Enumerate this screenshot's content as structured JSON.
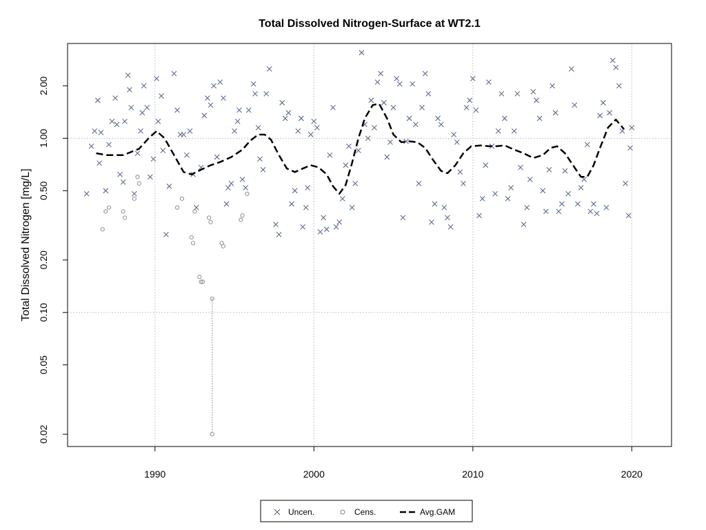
{
  "chart_data": {
    "type": "scatter",
    "title": "Total Dissolved Nitrogen-Surface at WT2.1",
    "xlabel": "",
    "ylabel": "Total Dissolved Nitrogen [mg/L]",
    "xlim": [
      1984.5,
      2022.5
    ],
    "ylim": [
      0.017,
      3.5
    ],
    "y_scale": "log",
    "x_ticks": [
      1990,
      2000,
      2010,
      2020
    ],
    "x_tick_labels": [
      "1990",
      "2000",
      "2010",
      "2020"
    ],
    "y_ticks": [
      0.02,
      0.05,
      0.1,
      0.2,
      0.5,
      1.0,
      2.0
    ],
    "y_tick_labels": [
      "0.02",
      "0.05",
      "0.10",
      "0.20",
      "0.50",
      "1.00",
      "2.00"
    ],
    "grid": true,
    "legend_position": "bottom-center",
    "series": [
      {
        "name": "Uncen.",
        "marker": "x",
        "color": "#5a6b8c",
        "points": [
          [
            1985.7,
            0.48
          ],
          [
            1986.0,
            0.9
          ],
          [
            1986.2,
            1.1
          ],
          [
            1986.4,
            1.65
          ],
          [
            1986.5,
            0.72
          ],
          [
            1986.6,
            1.08
          ],
          [
            1986.9,
            0.5
          ],
          [
            1987.1,
            0.92
          ],
          [
            1987.3,
            1.25
          ],
          [
            1987.5,
            1.7
          ],
          [
            1987.6,
            1.2
          ],
          [
            1987.8,
            0.62
          ],
          [
            1988.0,
            0.56
          ],
          [
            1988.1,
            1.25
          ],
          [
            1988.3,
            2.3
          ],
          [
            1988.4,
            1.9
          ],
          [
            1988.5,
            1.5
          ],
          [
            1988.7,
            0.48
          ],
          [
            1988.9,
            0.82
          ],
          [
            1989.1,
            1.1
          ],
          [
            1989.2,
            1.4
          ],
          [
            1989.3,
            2.0
          ],
          [
            1989.5,
            1.5
          ],
          [
            1989.7,
            0.6
          ],
          [
            1989.9,
            0.76
          ],
          [
            1990.1,
            2.2
          ],
          [
            1990.2,
            1.25
          ],
          [
            1990.4,
            1.75
          ],
          [
            1990.5,
            0.85
          ],
          [
            1990.7,
            0.28
          ],
          [
            1990.9,
            0.53
          ],
          [
            1991.2,
            2.35
          ],
          [
            1991.4,
            1.45
          ],
          [
            1991.6,
            1.05
          ],
          [
            1991.8,
            1.05
          ],
          [
            1992.0,
            0.8
          ],
          [
            1992.2,
            1.1
          ],
          [
            1992.4,
            0.62
          ],
          [
            1992.6,
            0.4
          ],
          [
            1992.9,
            0.68
          ],
          [
            1993.1,
            1.35
          ],
          [
            1993.3,
            1.7
          ],
          [
            1993.5,
            1.55
          ],
          [
            1993.7,
            2.0
          ],
          [
            1993.9,
            0.78
          ],
          [
            1994.1,
            2.1
          ],
          [
            1994.3,
            1.7
          ],
          [
            1994.5,
            0.42
          ],
          [
            1994.6,
            0.52
          ],
          [
            1994.8,
            0.55
          ],
          [
            1995.0,
            1.1
          ],
          [
            1995.2,
            1.25
          ],
          [
            1995.3,
            1.45
          ],
          [
            1995.5,
            0.58
          ],
          [
            1995.7,
            0.52
          ],
          [
            1995.9,
            1.45
          ],
          [
            1996.2,
            2.05
          ],
          [
            1996.3,
            1.8
          ],
          [
            1996.5,
            1.15
          ],
          [
            1996.6,
            0.76
          ],
          [
            1996.8,
            0.66
          ],
          [
            1997.0,
            1.8
          ],
          [
            1997.2,
            2.5
          ],
          [
            1997.6,
            0.32
          ],
          [
            1997.8,
            0.28
          ],
          [
            1998.0,
            1.6
          ],
          [
            1998.2,
            1.3
          ],
          [
            1998.4,
            1.4
          ],
          [
            1998.6,
            0.42
          ],
          [
            1998.8,
            0.5
          ],
          [
            1999.0,
            1.1
          ],
          [
            1999.2,
            1.3
          ],
          [
            1999.3,
            0.31
          ],
          [
            1999.5,
            0.4
          ],
          [
            1999.6,
            0.52
          ],
          [
            1999.8,
            1.05
          ],
          [
            2000.0,
            1.25
          ],
          [
            2000.2,
            1.15
          ],
          [
            2000.4,
            0.29
          ],
          [
            2000.6,
            0.35
          ],
          [
            2000.8,
            0.3
          ],
          [
            2001.0,
            0.8
          ],
          [
            2001.2,
            1.5
          ],
          [
            2001.4,
            0.31
          ],
          [
            2001.6,
            0.33
          ],
          [
            2001.8,
            0.45
          ],
          [
            2002.0,
            0.7
          ],
          [
            2002.2,
            0.9
          ],
          [
            2002.4,
            0.4
          ],
          [
            2002.6,
            0.55
          ],
          [
            2002.8,
            0.85
          ],
          [
            2003.0,
            3.1
          ],
          [
            2003.2,
            1.2
          ],
          [
            2003.4,
            1.0
          ],
          [
            2003.6,
            1.65
          ],
          [
            2003.8,
            1.15
          ],
          [
            2004.0,
            2.1
          ],
          [
            2004.2,
            2.35
          ],
          [
            2004.4,
            1.6
          ],
          [
            2004.6,
            0.78
          ],
          [
            2004.8,
            0.95
          ],
          [
            2005.0,
            1.5
          ],
          [
            2005.2,
            2.2
          ],
          [
            2005.4,
            2.05
          ],
          [
            2005.6,
            0.35
          ],
          [
            2005.8,
            0.96
          ],
          [
            2006.0,
            1.3
          ],
          [
            2006.2,
            2.05
          ],
          [
            2006.4,
            1.2
          ],
          [
            2006.6,
            0.55
          ],
          [
            2006.8,
            1.5
          ],
          [
            2007.0,
            2.35
          ],
          [
            2007.2,
            1.8
          ],
          [
            2007.4,
            0.33
          ],
          [
            2007.6,
            0.42
          ],
          [
            2007.8,
            1.3
          ],
          [
            2008.0,
            1.2
          ],
          [
            2008.2,
            0.4
          ],
          [
            2008.4,
            0.35
          ],
          [
            2008.6,
            0.31
          ],
          [
            2008.8,
            1.05
          ],
          [
            2009.0,
            0.95
          ],
          [
            2009.2,
            0.64
          ],
          [
            2009.4,
            0.55
          ],
          [
            2009.6,
            1.5
          ],
          [
            2009.8,
            1.65
          ],
          [
            2010.0,
            2.2
          ],
          [
            2010.2,
            1.45
          ],
          [
            2010.4,
            0.36
          ],
          [
            2010.6,
            0.45
          ],
          [
            2010.8,
            0.7
          ],
          [
            2011.0,
            2.1
          ],
          [
            2011.2,
            0.9
          ],
          [
            2011.4,
            0.48
          ],
          [
            2011.6,
            1.1
          ],
          [
            2011.8,
            1.8
          ],
          [
            2012.0,
            1.3
          ],
          [
            2012.2,
            0.45
          ],
          [
            2012.4,
            0.52
          ],
          [
            2012.6,
            1.1
          ],
          [
            2012.8,
            1.8
          ],
          [
            2013.0,
            0.68
          ],
          [
            2013.2,
            0.32
          ],
          [
            2013.4,
            0.4
          ],
          [
            2013.6,
            0.58
          ],
          [
            2013.8,
            1.85
          ],
          [
            2014.0,
            1.65
          ],
          [
            2014.2,
            1.3
          ],
          [
            2014.4,
            0.5
          ],
          [
            2014.6,
            0.38
          ],
          [
            2014.8,
            0.66
          ],
          [
            2015.0,
            2.0
          ],
          [
            2015.2,
            1.4
          ],
          [
            2015.4,
            0.38
          ],
          [
            2015.6,
            0.42
          ],
          [
            2015.8,
            0.65
          ],
          [
            2016.0,
            0.48
          ],
          [
            2016.2,
            2.5
          ],
          [
            2016.4,
            1.55
          ],
          [
            2016.6,
            0.42
          ],
          [
            2016.8,
            0.52
          ],
          [
            2017.0,
            0.58
          ],
          [
            2017.2,
            0.92
          ],
          [
            2017.4,
            0.38
          ],
          [
            2017.6,
            0.42
          ],
          [
            2017.8,
            0.37
          ],
          [
            2018.0,
            1.35
          ],
          [
            2018.2,
            1.6
          ],
          [
            2018.4,
            0.4
          ],
          [
            2018.6,
            1.4
          ],
          [
            2018.8,
            2.8
          ],
          [
            2019.0,
            2.55
          ],
          [
            2019.2,
            2.0
          ],
          [
            2019.4,
            1.1
          ],
          [
            2019.6,
            0.55
          ],
          [
            2019.8,
            0.36
          ],
          [
            2019.9,
            0.88
          ],
          [
            2020.0,
            1.15
          ]
        ]
      },
      {
        "name": "Cens.",
        "marker": "circle",
        "color": "#808080",
        "points": [
          [
            1986.7,
            0.3
          ],
          [
            1986.9,
            0.38
          ],
          [
            1987.1,
            0.4
          ],
          [
            1988.0,
            0.38
          ],
          [
            1988.1,
            0.35
          ],
          [
            1988.7,
            0.45
          ],
          [
            1988.9,
            0.6
          ],
          [
            1989.0,
            0.55
          ],
          [
            1991.4,
            0.4
          ],
          [
            1991.7,
            0.45
          ],
          [
            1992.3,
            0.27
          ],
          [
            1992.4,
            0.25
          ],
          [
            1992.5,
            0.38
          ],
          [
            1992.8,
            0.16
          ],
          [
            1992.9,
            0.15
          ],
          [
            1993.0,
            0.15
          ],
          [
            1993.4,
            0.35
          ],
          [
            1993.5,
            0.33
          ],
          [
            1993.6,
            0.12
          ],
          [
            1993.6,
            0.02
          ],
          [
            1994.2,
            0.25
          ],
          [
            1994.3,
            0.24
          ],
          [
            1995.4,
            0.34
          ],
          [
            1995.5,
            0.36
          ],
          [
            1995.8,
            0.48
          ]
        ]
      },
      {
        "name": "Avg.GAM",
        "marker": "dashed-line",
        "color": "#000000",
        "points": [
          [
            1986.3,
            0.82
          ],
          [
            1987.0,
            0.8
          ],
          [
            1988.0,
            0.8
          ],
          [
            1989.0,
            0.87
          ],
          [
            1989.6,
            1.0
          ],
          [
            1990.1,
            1.1
          ],
          [
            1990.6,
            1.0
          ],
          [
            1991.2,
            0.8
          ],
          [
            1991.8,
            0.64
          ],
          [
            1992.3,
            0.62
          ],
          [
            1992.9,
            0.66
          ],
          [
            1993.5,
            0.7
          ],
          [
            1994.1,
            0.73
          ],
          [
            1994.8,
            0.78
          ],
          [
            1995.5,
            0.86
          ],
          [
            1996.0,
            0.97
          ],
          [
            1996.5,
            1.05
          ],
          [
            1996.9,
            1.05
          ],
          [
            1997.3,
            0.98
          ],
          [
            1997.8,
            0.8
          ],
          [
            1998.3,
            0.67
          ],
          [
            1998.8,
            0.64
          ],
          [
            1999.3,
            0.67
          ],
          [
            1999.8,
            0.7
          ],
          [
            2000.3,
            0.68
          ],
          [
            2000.8,
            0.62
          ],
          [
            2001.2,
            0.53
          ],
          [
            2001.6,
            0.48
          ],
          [
            2002.0,
            0.54
          ],
          [
            2002.4,
            0.72
          ],
          [
            2002.8,
            1.0
          ],
          [
            2003.2,
            1.3
          ],
          [
            2003.7,
            1.55
          ],
          [
            2004.1,
            1.58
          ],
          [
            2004.6,
            1.3
          ],
          [
            2005.0,
            1.05
          ],
          [
            2005.5,
            0.95
          ],
          [
            2006.0,
            0.96
          ],
          [
            2006.5,
            0.95
          ],
          [
            2007.0,
            0.88
          ],
          [
            2007.5,
            0.75
          ],
          [
            2008.0,
            0.65
          ],
          [
            2008.4,
            0.63
          ],
          [
            2008.9,
            0.7
          ],
          [
            2009.4,
            0.82
          ],
          [
            2009.9,
            0.9
          ],
          [
            2010.5,
            0.91
          ],
          [
            2011.0,
            0.9
          ],
          [
            2011.5,
            0.9
          ],
          [
            2012.0,
            0.91
          ],
          [
            2012.6,
            0.86
          ],
          [
            2013.2,
            0.82
          ],
          [
            2013.8,
            0.77
          ],
          [
            2014.4,
            0.8
          ],
          [
            2014.9,
            0.88
          ],
          [
            2015.3,
            0.9
          ],
          [
            2015.8,
            0.82
          ],
          [
            2016.3,
            0.7
          ],
          [
            2016.8,
            0.6
          ],
          [
            2017.2,
            0.6
          ],
          [
            2017.6,
            0.7
          ],
          [
            2018.0,
            0.88
          ],
          [
            2018.5,
            1.15
          ],
          [
            2019.0,
            1.28
          ],
          [
            2019.5,
            1.13
          ]
        ]
      }
    ]
  },
  "legend": {
    "items": [
      {
        "label": "Uncen."
      },
      {
        "label": "Cens."
      },
      {
        "label": "Avg.GAM"
      }
    ]
  }
}
